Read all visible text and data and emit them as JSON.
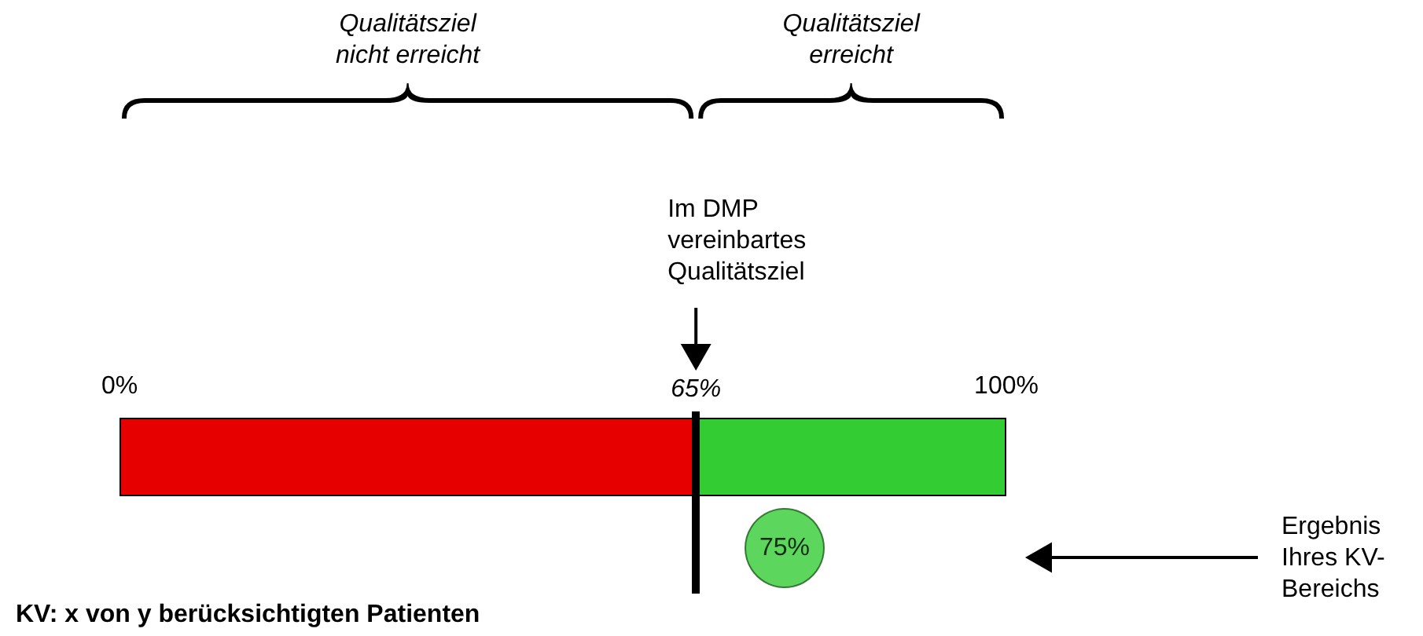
{
  "chart_data": {
    "type": "bar",
    "orientation": "horizontal",
    "stacked": true,
    "categories": [
      null,
      null
    ],
    "series": [
      {
        "color": "#e60000",
        "values": [
          65,
          null
        ]
      },
      {
        "color": "#33cc33",
        "values": [
          35,
          null
        ]
      },
      {
        "type": "scatter",
        "color": "#33cc33",
        "values": [
          null,
          75
        ],
        "value_labels": [
          null,
          "75%"
        ]
      }
    ],
    "xlim": [
      0,
      100
    ],
    "xticks": [
      {
        "value": 0,
        "label": "0%"
      },
      {
        "value": 100,
        "label": "100%"
      }
    ],
    "marker": "circle",
    "ref_lines": [
      {
        "axis": "x",
        "value": 65,
        "label": "65%",
        "color": "#000000"
      }
    ],
    "annotations": [
      "Qualitätsziel\nnicht erreicht",
      "Qualitätsziel\nerreicht",
      "Im DMP\nvereinbartes\nQualitätsziel",
      "Ergebnis\nIhres KV-\nBereichs",
      "KV: x von y berücksichtigten Patienten"
    ]
  }
}
